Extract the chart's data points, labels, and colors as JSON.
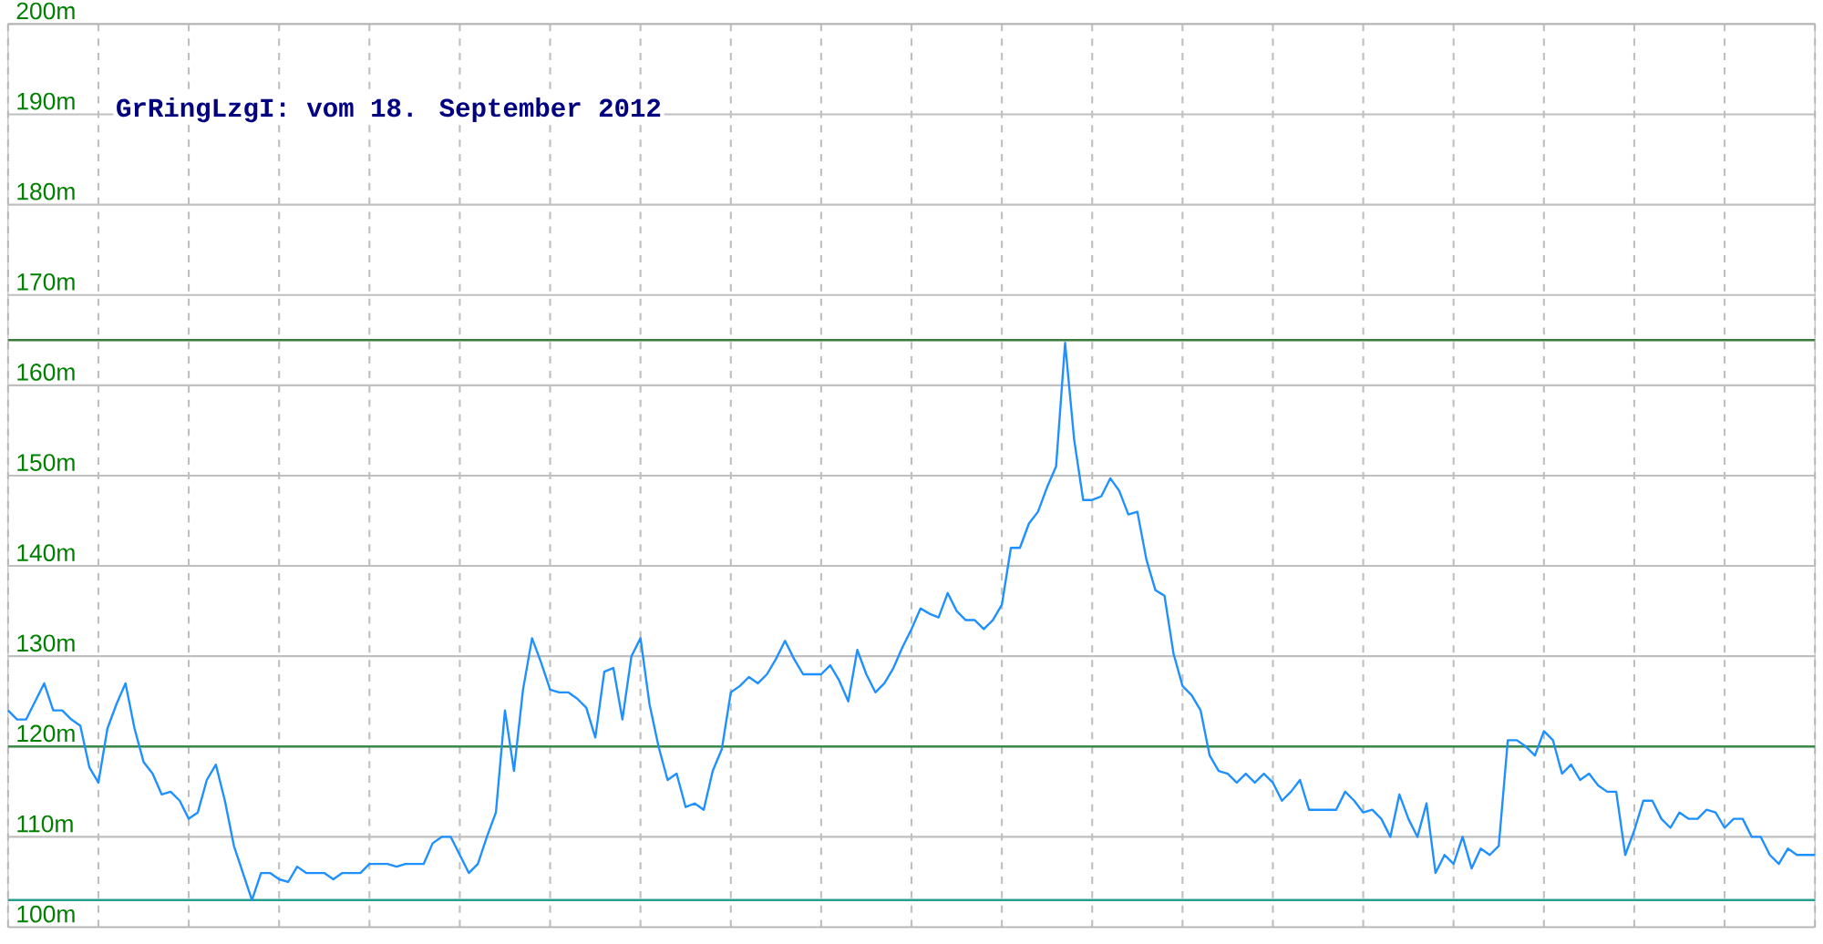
{
  "chart_data": {
    "type": "line",
    "title": "GrRingLzgI: vom 18. September 2012",
    "categories": [
      null,
      null,
      null,
      null,
      null,
      null,
      null,
      null,
      null,
      null,
      null,
      null,
      null,
      null,
      null,
      null,
      null,
      null,
      null,
      null,
      null,
      null,
      null,
      null,
      null,
      null,
      null,
      null,
      null,
      null,
      null,
      null,
      null,
      null,
      null,
      null,
      null,
      null,
      null,
      null,
      null,
      null,
      null,
      null,
      null,
      null,
      null,
      null,
      null,
      null,
      null,
      null,
      null,
      null,
      null,
      null,
      null,
      null,
      null,
      null,
      null,
      null,
      null,
      null,
      null,
      null,
      null,
      null,
      null,
      null,
      null,
      null,
      null,
      null,
      null,
      null,
      null,
      null,
      null,
      null,
      null,
      null,
      null,
      null,
      null,
      null,
      null,
      null,
      null,
      null,
      null,
      null,
      null,
      null,
      null,
      null,
      null,
      null,
      null,
      null,
      null,
      null,
      null,
      null,
      null,
      null,
      null,
      null,
      null,
      null,
      null,
      null,
      null,
      null,
      null,
      null,
      null,
      null,
      null,
      null,
      null,
      null,
      null,
      null,
      null,
      null,
      null,
      null,
      null,
      null,
      null,
      null,
      null,
      null,
      null,
      null,
      null,
      null,
      null,
      null,
      null,
      null,
      null,
      null,
      null,
      null,
      null,
      null,
      null,
      null,
      null,
      null,
      null,
      null,
      null,
      null,
      null,
      null,
      null,
      null,
      null,
      null,
      null,
      null,
      null,
      null,
      null,
      null,
      null,
      null,
      null,
      null,
      null,
      null,
      null,
      null,
      null,
      null,
      null,
      null,
      null,
      null,
      null,
      null,
      null,
      null,
      null,
      null,
      null,
      null,
      null,
      null,
      null,
      null,
      null,
      null,
      null,
      null,
      null,
      null,
      null
    ],
    "values": [
      124,
      123,
      123,
      125,
      127,
      124,
      124,
      123,
      122.3,
      117.7,
      116,
      122,
      124.7,
      127,
      122,
      118.3,
      117,
      114.7,
      115,
      114,
      112,
      112.7,
      116.3,
      118,
      114,
      109,
      106,
      103,
      106,
      106,
      105.3,
      105,
      106.7,
      106,
      106,
      106,
      105.3,
      106,
      106,
      106,
      107,
      107,
      107,
      106.7,
      107,
      107,
      107,
      109.3,
      110,
      110,
      108,
      106,
      107,
      110,
      112.7,
      124,
      117.3,
      126.3,
      132,
      129.3,
      126.3,
      126,
      126,
      125.3,
      124.3,
      121,
      128.3,
      128.7,
      123,
      130,
      132,
      124.7,
      120,
      116.3,
      117,
      113.3,
      113.7,
      113,
      117.3,
      119.7,
      126,
      126.7,
      127.7,
      127,
      128,
      129.7,
      131.7,
      129.7,
      128,
      128,
      128,
      129,
      127.3,
      125,
      130.7,
      128,
      126,
      127,
      128.7,
      131,
      133,
      135.3,
      134.7,
      134.3,
      137,
      135,
      134,
      134,
      133,
      134,
      135.7,
      142,
      142,
      144.7,
      146,
      148.7,
      151,
      164.7,
      154,
      147.3,
      147.3,
      147.7,
      149.7,
      148.3,
      145.7,
      146,
      140.7,
      137.3,
      136.7,
      130.3,
      126.7,
      125.7,
      124,
      119,
      117.3,
      117,
      116,
      117,
      116,
      117,
      116,
      114,
      115,
      116.3,
      113,
      113,
      113,
      113,
      115,
      114,
      112.7,
      113,
      112,
      110,
      114.7,
      112,
      110,
      113.7,
      106,
      108,
      107,
      110,
      106.5,
      108.7,
      108,
      109,
      120.7,
      120.7,
      120,
      119,
      121.7,
      120.7,
      117,
      118,
      116.3,
      117,
      115.7,
      115,
      115,
      108,
      110.7,
      114,
      114,
      112,
      111,
      112.7,
      112,
      112,
      113,
      112.7,
      111,
      112,
      112,
      110,
      110,
      108,
      107,
      108.7,
      108,
      108,
      108
    ],
    "color": "#1e90ff",
    "ylim": [
      100,
      200
    ],
    "yticks": [
      {
        "value": 100,
        "label": "100m"
      },
      {
        "value": 110,
        "label": "110m"
      },
      {
        "value": 120,
        "label": "120m"
      },
      {
        "value": 130,
        "label": "130m"
      },
      {
        "value": 140,
        "label": "140m"
      },
      {
        "value": 150,
        "label": "150m"
      },
      {
        "value": 160,
        "label": "160m"
      },
      {
        "value": 170,
        "label": "170m"
      },
      {
        "value": 180,
        "label": "180m"
      },
      {
        "value": 190,
        "label": "190m"
      },
      {
        "value": 200,
        "label": "200m"
      }
    ],
    "grid": true,
    "ref_lines": [
      {
        "axis": "y",
        "value": 165,
        "color": "#3a7a3a"
      },
      {
        "axis": "y",
        "value": 120,
        "color": "#3a8a4a"
      },
      {
        "axis": "y",
        "value": 103,
        "color": "#2a9d8f"
      }
    ]
  }
}
